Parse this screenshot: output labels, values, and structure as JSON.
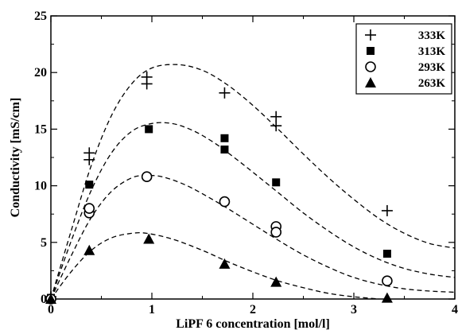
{
  "chart_data": {
    "type": "scatter",
    "xlabel": "LiPF 6 concentration [mol/l]",
    "ylabel": "Conductivity [mS/cm]",
    "xlim": [
      0,
      4
    ],
    "ylim": [
      0,
      25
    ],
    "x_ticks": [
      "0",
      "1",
      "2",
      "3",
      "4"
    ],
    "y_ticks": [
      "0",
      "5",
      "10",
      "15",
      "20",
      "25"
    ],
    "grid": false,
    "legend_position": "top-right",
    "series": [
      {
        "name": "333K",
        "marker": "plus",
        "points": [
          [
            0.0,
            0.2
          ],
          [
            0.38,
            12.3
          ],
          [
            0.38,
            12.9
          ],
          [
            0.95,
            19.0
          ],
          [
            0.95,
            19.6
          ],
          [
            1.72,
            18.2
          ],
          [
            2.23,
            15.3
          ],
          [
            2.23,
            16.1
          ],
          [
            3.33,
            7.8
          ]
        ],
        "fit": [
          [
            0,
            0
          ],
          [
            0.2,
            6.0
          ],
          [
            0.4,
            11.8
          ],
          [
            0.6,
            16.2
          ],
          [
            0.8,
            19.0
          ],
          [
            1.0,
            20.4
          ],
          [
            1.25,
            20.7
          ],
          [
            1.5,
            20.2
          ],
          [
            1.75,
            18.9
          ],
          [
            2.0,
            17.1
          ],
          [
            2.25,
            15.0
          ],
          [
            2.5,
            12.8
          ],
          [
            2.75,
            10.7
          ],
          [
            3.0,
            8.8
          ],
          [
            3.25,
            7.1
          ],
          [
            3.5,
            5.8
          ],
          [
            3.75,
            4.9
          ],
          [
            4.0,
            4.5
          ]
        ]
      },
      {
        "name": "313K",
        "marker": "square",
        "points": [
          [
            0.0,
            0.1
          ],
          [
            0.38,
            10.1
          ],
          [
            0.97,
            15.0
          ],
          [
            1.72,
            14.2
          ],
          [
            1.72,
            13.2
          ],
          [
            2.23,
            10.3
          ],
          [
            3.33,
            4.0
          ]
        ],
        "fit": [
          [
            0,
            0
          ],
          [
            0.2,
            5.1
          ],
          [
            0.4,
            9.6
          ],
          [
            0.6,
            12.9
          ],
          [
            0.8,
            14.8
          ],
          [
            1.0,
            15.5
          ],
          [
            1.2,
            15.5
          ],
          [
            1.4,
            14.9
          ],
          [
            1.6,
            13.9
          ],
          [
            1.8,
            12.6
          ],
          [
            2.0,
            11.2
          ],
          [
            2.25,
            9.4
          ],
          [
            2.5,
            7.6
          ],
          [
            2.75,
            6.0
          ],
          [
            3.0,
            4.6
          ],
          [
            3.25,
            3.5
          ],
          [
            3.5,
            2.7
          ],
          [
            3.75,
            2.2
          ],
          [
            4.0,
            1.9
          ]
        ]
      },
      {
        "name": "293K",
        "marker": "circle",
        "points": [
          [
            0.0,
            0.0
          ],
          [
            0.38,
            7.6
          ],
          [
            0.38,
            8.0
          ],
          [
            0.95,
            10.8
          ],
          [
            1.72,
            8.6
          ],
          [
            2.23,
            6.4
          ],
          [
            2.23,
            5.9
          ],
          [
            3.33,
            1.6
          ]
        ],
        "fit": [
          [
            0,
            0
          ],
          [
            0.2,
            3.8
          ],
          [
            0.4,
            7.2
          ],
          [
            0.6,
            9.5
          ],
          [
            0.8,
            10.7
          ],
          [
            0.95,
            10.9
          ],
          [
            1.1,
            10.8
          ],
          [
            1.3,
            10.2
          ],
          [
            1.5,
            9.3
          ],
          [
            1.75,
            8.0
          ],
          [
            2.0,
            6.6
          ],
          [
            2.25,
            5.2
          ],
          [
            2.5,
            3.9
          ],
          [
            2.75,
            2.8
          ],
          [
            3.0,
            1.9
          ],
          [
            3.25,
            1.3
          ],
          [
            3.5,
            0.9
          ],
          [
            3.75,
            0.7
          ],
          [
            4.0,
            0.6
          ]
        ]
      },
      {
        "name": "263K",
        "marker": "triangle",
        "points": [
          [
            0.0,
            0.0
          ],
          [
            0.38,
            4.3
          ],
          [
            0.97,
            5.3
          ],
          [
            1.72,
            3.1
          ],
          [
            2.23,
            1.5
          ],
          [
            3.33,
            0.1
          ]
        ],
        "fit": [
          [
            0,
            0
          ],
          [
            0.2,
            2.4
          ],
          [
            0.4,
            4.3
          ],
          [
            0.6,
            5.4
          ],
          [
            0.8,
            5.8
          ],
          [
            0.95,
            5.8
          ],
          [
            1.2,
            5.3
          ],
          [
            1.5,
            4.3
          ],
          [
            1.75,
            3.3
          ],
          [
            2.0,
            2.4
          ],
          [
            2.25,
            1.6
          ],
          [
            2.5,
            1.0
          ],
          [
            2.75,
            0.5
          ],
          [
            3.0,
            0.2
          ],
          [
            3.25,
            0.0
          ]
        ]
      }
    ]
  }
}
